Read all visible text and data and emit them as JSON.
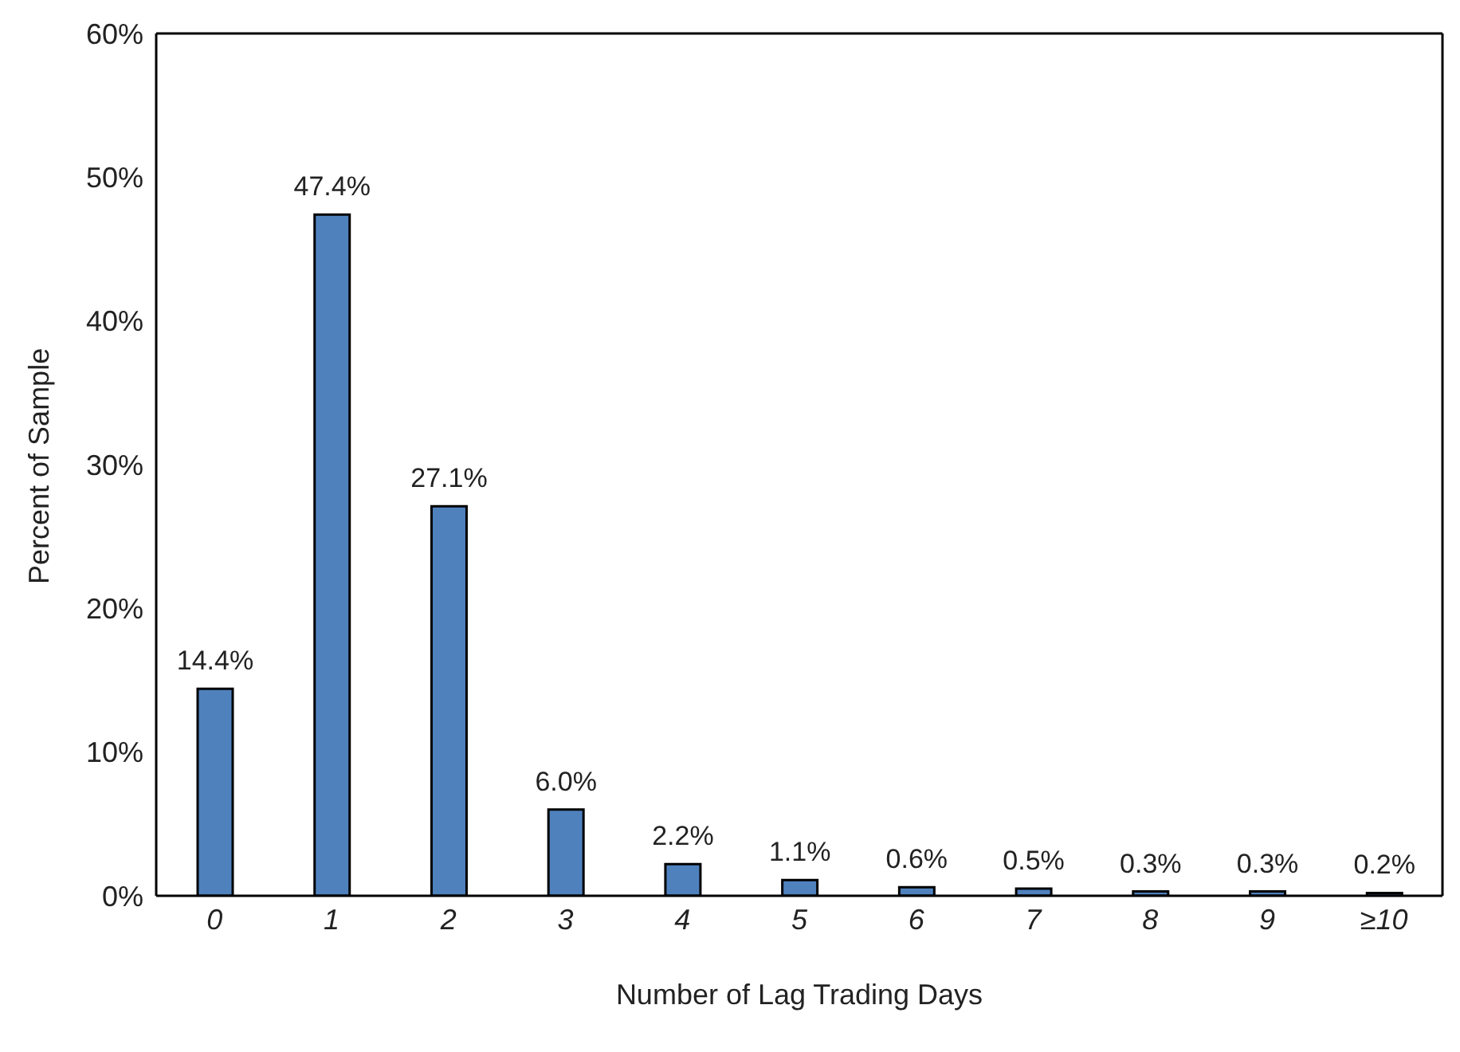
{
  "chart_data": {
    "type": "bar",
    "xlabel": "Number of Lag Trading Days",
    "ylabel": "Percent of Sample",
    "categories": [
      "0",
      "1",
      "2",
      "3",
      "4",
      "5",
      "6",
      "7",
      "8",
      "9",
      "≥10"
    ],
    "values": [
      14.4,
      47.4,
      27.1,
      6.0,
      2.2,
      1.1,
      0.6,
      0.5,
      0.3,
      0.3,
      0.2
    ],
    "value_labels": [
      "14.4%",
      "47.4%",
      "27.1%",
      "6.0%",
      "2.2%",
      "1.1%",
      "0.6%",
      "0.5%",
      "0.3%",
      "0.3%",
      "0.2%"
    ],
    "color": "#4f81bd",
    "ylim": [
      0,
      60
    ],
    "yticks": [
      {
        "value": 0,
        "label": "0%"
      },
      {
        "value": 10,
        "label": "10%"
      },
      {
        "value": 20,
        "label": "20%"
      },
      {
        "value": 30,
        "label": "30%"
      },
      {
        "value": 40,
        "label": "40%"
      },
      {
        "value": 50,
        "label": "50%"
      },
      {
        "value": 60,
        "label": "60%"
      }
    ],
    "grid": false,
    "legend": false
  }
}
